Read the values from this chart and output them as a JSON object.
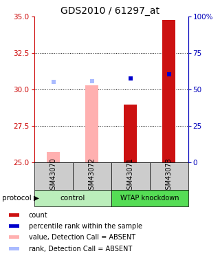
{
  "title": "GDS2010 / 61297_at",
  "samples": [
    "GSM43070",
    "GSM43072",
    "GSM43071",
    "GSM43073"
  ],
  "ylim": [
    25,
    35
  ],
  "yticks": [
    25,
    27.5,
    30,
    32.5,
    35
  ],
  "y2lim": [
    0,
    100
  ],
  "y2ticks": [
    0,
    25,
    50,
    75,
    100
  ],
  "y2ticklabels": [
    "0",
    "25",
    "50",
    "75",
    "100%"
  ],
  "bar_values": [
    25.7,
    30.3,
    29.0,
    34.8
  ],
  "bar_colors": [
    "#FFB0B0",
    "#FFB0B0",
    "#CC1111",
    "#CC1111"
  ],
  "rank_values": [
    30.55,
    30.6,
    30.75,
    31.05
  ],
  "rank_colors": [
    "#AABBFF",
    "#AABBFF",
    "#0000CC",
    "#0000CC"
  ],
  "bar_base": 25,
  "bar_width": 0.35,
  "group_colors": {
    "control": "#BBEEBB",
    "WTAP knockdown": "#55DD55"
  },
  "legend_items": [
    {
      "label": "count",
      "color": "#CC1111"
    },
    {
      "label": "percentile rank within the sample",
      "color": "#0000CC"
    },
    {
      "label": "value, Detection Call = ABSENT",
      "color": "#FFB0B0"
    },
    {
      "label": "rank, Detection Call = ABSENT",
      "color": "#AABBFF"
    }
  ],
  "left_color": "#CC0000",
  "right_color": "#0000BB",
  "bg_color": "#FFFFFF",
  "sample_label_bg": "#CCCCCC"
}
